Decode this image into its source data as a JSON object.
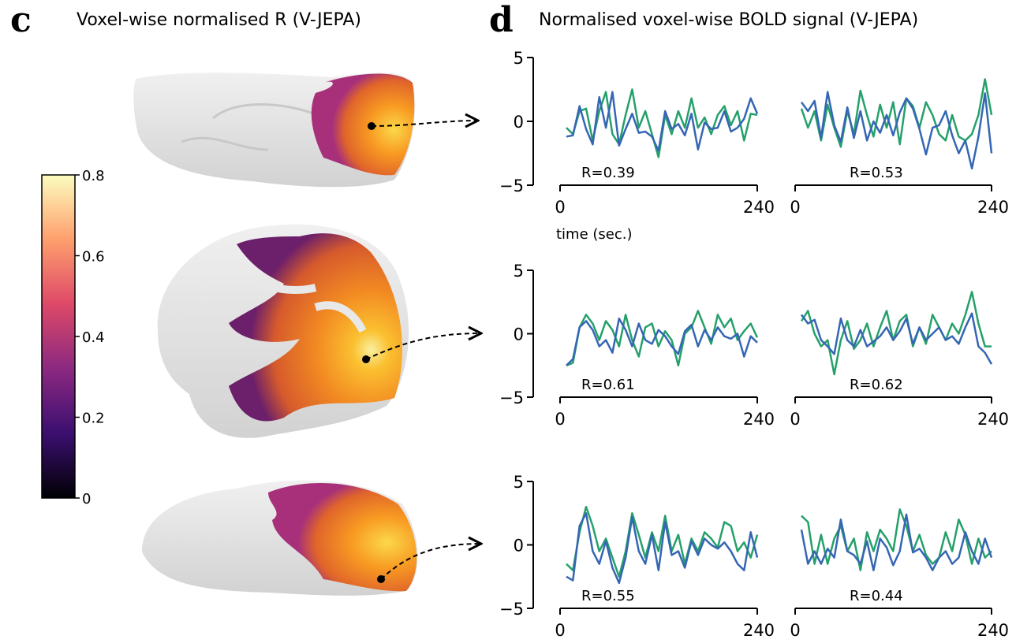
{
  "panel_c": {
    "letter": "c",
    "title": "Voxel-wise normalised R (V-JEPA)",
    "colorbar": {
      "ticks": [
        "0.8",
        "0.6",
        "0.4",
        "0.2",
        "0"
      ],
      "range": [
        0,
        0.8
      ],
      "colormap": [
        "#000004",
        "#3b0f70",
        "#8c2981",
        "#de4968",
        "#fe9f6d",
        "#fcfdbf"
      ]
    }
  },
  "panel_d": {
    "letter": "d",
    "title": "Normalised voxel-wise BOLD signal (V-JEPA)",
    "xlabel": "time (sec.)"
  },
  "chart_data": {
    "type": "line",
    "xlim": [
      0,
      240
    ],
    "ylim": [
      -5,
      5
    ],
    "yticks": [
      "5",
      "0",
      "−5"
    ],
    "xticks": [
      "0",
      "240"
    ],
    "colors": {
      "green": "#25a06a",
      "blue": "#3566b3"
    },
    "panels": [
      {
        "r_label": "R=0.39",
        "green": [
          -0.5,
          -1,
          0.8,
          1,
          -1.5,
          0.8,
          2.3,
          -1,
          -1.8,
          0.5,
          2.5,
          -0.5,
          0.8,
          -1,
          -2.8,
          0.5,
          -1,
          0.8,
          -0.5,
          1.8,
          -0.5,
          0.3,
          -1,
          0.5,
          1.2,
          -0.3,
          0.8,
          -1.5,
          0.6,
          0.5
        ],
        "blue": [
          -1.2,
          -1.1,
          1.2,
          -0.6,
          -1.8,
          1.9,
          -0.5,
          2.3,
          -1.9,
          -0.6,
          0.6,
          -0.9,
          -0.8,
          -1.2,
          -2.3,
          0.8,
          -0.6,
          -0.2,
          -1.1,
          0.6,
          -2.2,
          -0.1,
          -0.6,
          -0.5,
          0.8,
          -0.8,
          -0.5,
          0.2,
          1.8,
          0.6
        ]
      },
      {
        "r_label": "R=0.53",
        "green": [
          1,
          -0.5,
          0.8,
          -1.5,
          1.3,
          -0.5,
          -2,
          0.8,
          -1,
          2.4,
          0.5,
          -1.2,
          1.3,
          -0.5,
          1.5,
          -1.8,
          1.8,
          1.2,
          -0.5,
          1.5,
          0.5,
          -1,
          -1.5,
          0.5,
          -1.2,
          -1.5,
          -1,
          0.5,
          3.3,
          0.5
        ],
        "blue": [
          1.5,
          0.8,
          1.6,
          -1.3,
          2.3,
          -0.3,
          -1.6,
          1.1,
          -1.3,
          0.8,
          -1.5,
          0,
          -0.9,
          0.5,
          -1.1,
          0.7,
          1.8,
          1,
          -0.6,
          -2.6,
          -0.5,
          -0.3,
          0.8,
          -1.1,
          -2.5,
          -1.5,
          -3.7,
          -1.2,
          2.2,
          -2.5
        ]
      },
      {
        "r_label": "R=0.61",
        "green": [
          -2.5,
          -2.3,
          0.5,
          1.5,
          0.8,
          -0.5,
          1,
          0.3,
          -1,
          1.5,
          -0.5,
          -1.8,
          0.5,
          0.8,
          -1,
          0.2,
          -0.5,
          -2.5,
          0,
          0.5,
          1.8,
          0.5,
          -0.8,
          1.5,
          0.5,
          1.2,
          -0.5,
          0.2,
          0.8,
          -0.3
        ],
        "blue": [
          -2.5,
          -2,
          0.5,
          1,
          0.3,
          -1,
          -0.5,
          -1.5,
          1.2,
          0.3,
          -1,
          0.8,
          -0.5,
          -0.8,
          0.3,
          -0.2,
          -1,
          -1.6,
          0.2,
          0.7,
          -1,
          0.3,
          -0.5,
          0.5,
          -0.2,
          -0.4,
          0,
          -1.8,
          -0.2,
          -0.7
        ]
      },
      {
        "r_label": "R=0.62",
        "green": [
          1,
          1.8,
          0,
          -1,
          -0.5,
          -3.2,
          -0.5,
          1,
          -1.2,
          -0.5,
          0.8,
          -1,
          0.5,
          1.8,
          -0.5,
          1,
          1.5,
          -1,
          0.5,
          -0.8,
          1.5,
          0.5,
          -0.5,
          0.8,
          0,
          1.5,
          3.3,
          0.8,
          -1,
          -1
        ],
        "blue": [
          1.5,
          0.8,
          1.1,
          -0.5,
          -1,
          -1.6,
          1.2,
          -0.5,
          -1,
          0.3,
          -1,
          -0.6,
          -0.2,
          0.5,
          -0.5,
          0.2,
          1.2,
          -0.8,
          0.5,
          -0.5,
          0,
          0.5,
          -0.5,
          -0.2,
          -0.8,
          0.5,
          1.6,
          -1,
          -1.5,
          -2.4
        ]
      },
      {
        "r_label": "R=0.55",
        "green": [
          -1.5,
          -2,
          1,
          3,
          1.5,
          -0.5,
          0.5,
          -1,
          -2.5,
          -0.5,
          2.5,
          0.8,
          -1,
          1,
          -0.5,
          2.3,
          -0.5,
          0.8,
          -1.5,
          0.5,
          -0.5,
          1,
          0.5,
          -0.2,
          1.8,
          1.5,
          -0.5,
          0.2,
          -1,
          0.8
        ],
        "blue": [
          -2.5,
          -2.8,
          1.5,
          2.5,
          -0.5,
          -1.5,
          0.3,
          -1.8,
          -3,
          -1,
          2.2,
          -0.5,
          -1.5,
          0.8,
          -2,
          1.8,
          -0.8,
          -0.5,
          -1.8,
          0.3,
          -0.8,
          0.5,
          0,
          -0.3,
          0.2,
          -0.5,
          -1.5,
          -2,
          1,
          -1
        ]
      },
      {
        "r_label": "R=0.44",
        "green": [
          2.3,
          1.8,
          -1.5,
          0.8,
          -1.5,
          0.5,
          1.5,
          -0.5,
          0.5,
          -2,
          1,
          -0.5,
          1.2,
          0.5,
          -0.5,
          2.8,
          1.5,
          -0.5,
          0.8,
          -0.8,
          -1.5,
          -1,
          1,
          -0.5,
          2,
          0.8,
          -1.5,
          0.5,
          -1,
          -0.5
        ],
        "blue": [
          1.2,
          -1.5,
          -0.5,
          -1.5,
          -0.3,
          -1,
          2,
          -0.5,
          -0.8,
          -1.5,
          0.3,
          -2,
          0.5,
          -0.2,
          -1.6,
          -0.5,
          2.4,
          -0.6,
          -0.3,
          -1,
          -2,
          -1,
          -0.5,
          -1.5,
          -1,
          1,
          -0.5,
          -1.5,
          0.5,
          -1
        ]
      }
    ]
  }
}
